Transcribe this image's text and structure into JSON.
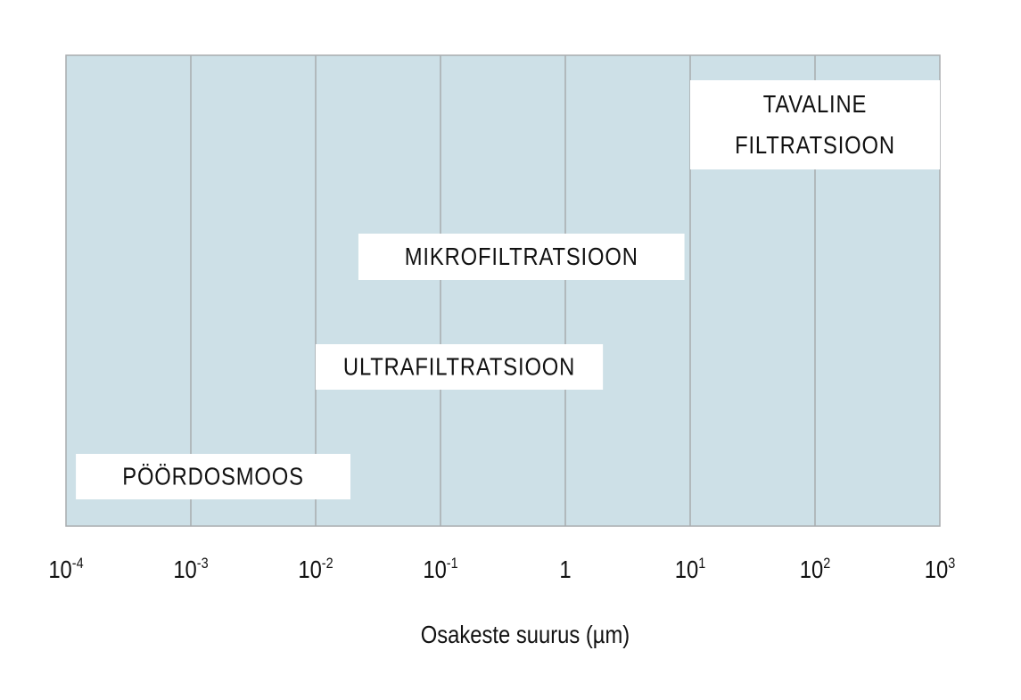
{
  "chart_data": {
    "type": "range-bar",
    "title": "",
    "xlabel": "Osakeste suurus (µm)",
    "ylabel": "",
    "x_scale": "log",
    "xlim": [
      0.0001,
      1000
    ],
    "grid": true,
    "x_ticks": [
      {
        "value": 0.0001,
        "base": "10",
        "exp": "-4"
      },
      {
        "value": 0.001,
        "base": "10",
        "exp": "-3"
      },
      {
        "value": 0.01,
        "base": "10",
        "exp": "-2"
      },
      {
        "value": 0.1,
        "base": "10",
        "exp": "-1"
      },
      {
        "value": 1,
        "base": "1",
        "exp": ""
      },
      {
        "value": 10,
        "base": "10",
        "exp": "1"
      },
      {
        "value": 100,
        "base": "10",
        "exp": "2"
      },
      {
        "value": 1000,
        "base": "10",
        "exp": "3"
      }
    ],
    "ranges": [
      {
        "label": [
          "TAVALINE",
          "FILTRATSIOON"
        ],
        "from": 10,
        "to": 1000
      },
      {
        "label": [
          "MIKROFILTRATSIOON"
        ],
        "from": 0.022,
        "to": 9
      },
      {
        "label": [
          "ULTRAFILTRATSIOON"
        ],
        "from": 0.01,
        "to": 2
      },
      {
        "label": [
          "PÖÖRDOSMOOS"
        ],
        "from": 0.00012,
        "to": 0.019
      }
    ],
    "colors": {
      "plot_background": "#cde0e7",
      "gridline": "#a8acae",
      "range_box": "#ffffff"
    }
  }
}
